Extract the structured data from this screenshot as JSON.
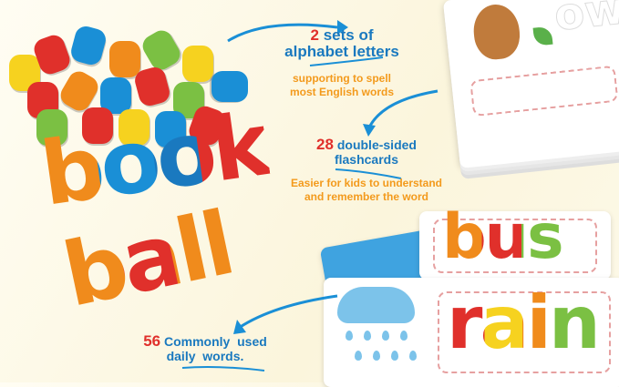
{
  "callouts": {
    "sets": {
      "number": "2",
      "title": "sets of",
      "title2": "alphabet letters",
      "desc1": "supporting to spell",
      "desc2": "most English words"
    },
    "flashcards": {
      "number": "28",
      "title": "double-sided",
      "title2": "flashcards",
      "desc1": "Easier for kids to understand",
      "desc2": "and remember the word"
    },
    "words": {
      "number": "56",
      "title": "Commonly  used",
      "title2": "daily  words."
    }
  },
  "letter_words": {
    "book": "book",
    "ball": "ball",
    "bus": "bus",
    "rain": "rain",
    "owl": "ow"
  },
  "colors": {
    "red": "#e0302b",
    "blue": "#1a79bf",
    "orange": "#f39a1c",
    "background": "#fbf5dc"
  }
}
